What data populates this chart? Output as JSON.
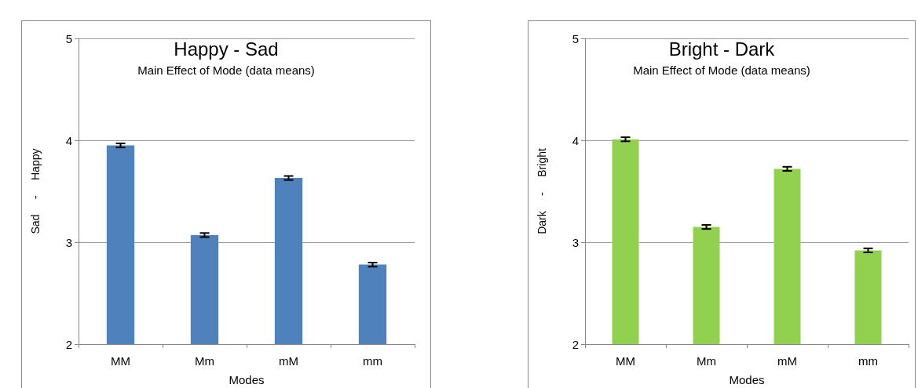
{
  "chart_data": [
    {
      "type": "bar",
      "title": "Happy - Sad",
      "subtitle": "Main Effect of Mode (data means)",
      "xlabel": "Modes",
      "ylabel": "Sad     -     Happy",
      "categories": [
        "MM",
        "Mm",
        "mM",
        "mm"
      ],
      "values": [
        3.95,
        3.07,
        3.63,
        2.78
      ],
      "errors": [
        0.02,
        0.02,
        0.02,
        0.02
      ],
      "color": "#4f81bd",
      "ylim": [
        2,
        5
      ],
      "yticks": [
        2,
        3,
        4,
        5
      ],
      "grid": "y"
    },
    {
      "type": "bar",
      "title": "Bright - Dark",
      "subtitle": "Main Effect of Mode (data means)",
      "xlabel": "Modes",
      "ylabel": "Dark     -     Bright",
      "categories": [
        "MM",
        "Mm",
        "mM",
        "mm"
      ],
      "values": [
        4.01,
        3.15,
        3.72,
        2.92
      ],
      "errors": [
        0.02,
        0.02,
        0.02,
        0.02
      ],
      "color": "#92d050",
      "ylim": [
        2,
        5
      ],
      "yticks": [
        2,
        3,
        4,
        5
      ],
      "grid": "y"
    }
  ]
}
